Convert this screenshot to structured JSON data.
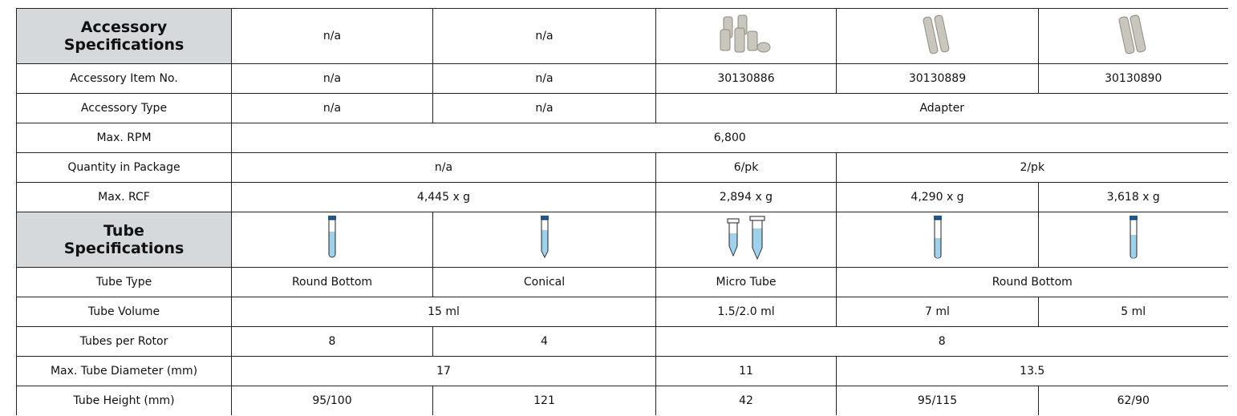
{
  "accessory_specifications": {
    "title": "Accessory Specifications",
    "cells": [
      "n/a",
      "n/a"
    ]
  },
  "accessory_rows": [
    [
      "Accessory Item No.",
      "n/a",
      "n/a",
      "30130886",
      "30130889",
      "30130890"
    ],
    [
      "Accessory Type",
      "n/a",
      "n/a",
      "Adapter"
    ],
    [
      "Max. RPM",
      "6,800"
    ],
    [
      "Quantity in Package",
      "n/a",
      "6/pk",
      "2/pk"
    ],
    [
      "Max. RCF",
      "4,445 x g",
      "2,894 x g",
      "4,290 x g",
      "3,618 x g"
    ]
  ],
  "tube_specifications": {
    "title": "Tube Specifications"
  },
  "tube_rows": [
    [
      "Tube Type",
      "Round Bottom",
      "Conical",
      "Micro Tube",
      "Round Bottom"
    ],
    [
      "Tube Volume",
      "15 ml",
      "1.5/2.0 ml",
      "7 ml",
      "5 ml"
    ],
    [
      "Tubes per Rotor",
      "8",
      "4",
      "8"
    ],
    [
      "Max. Tube Diameter (mm)",
      "17",
      "11",
      "13.5"
    ],
    [
      "Tube Height (mm)",
      "95/100",
      "121",
      "42",
      "95/115",
      "62/90"
    ]
  ]
}
